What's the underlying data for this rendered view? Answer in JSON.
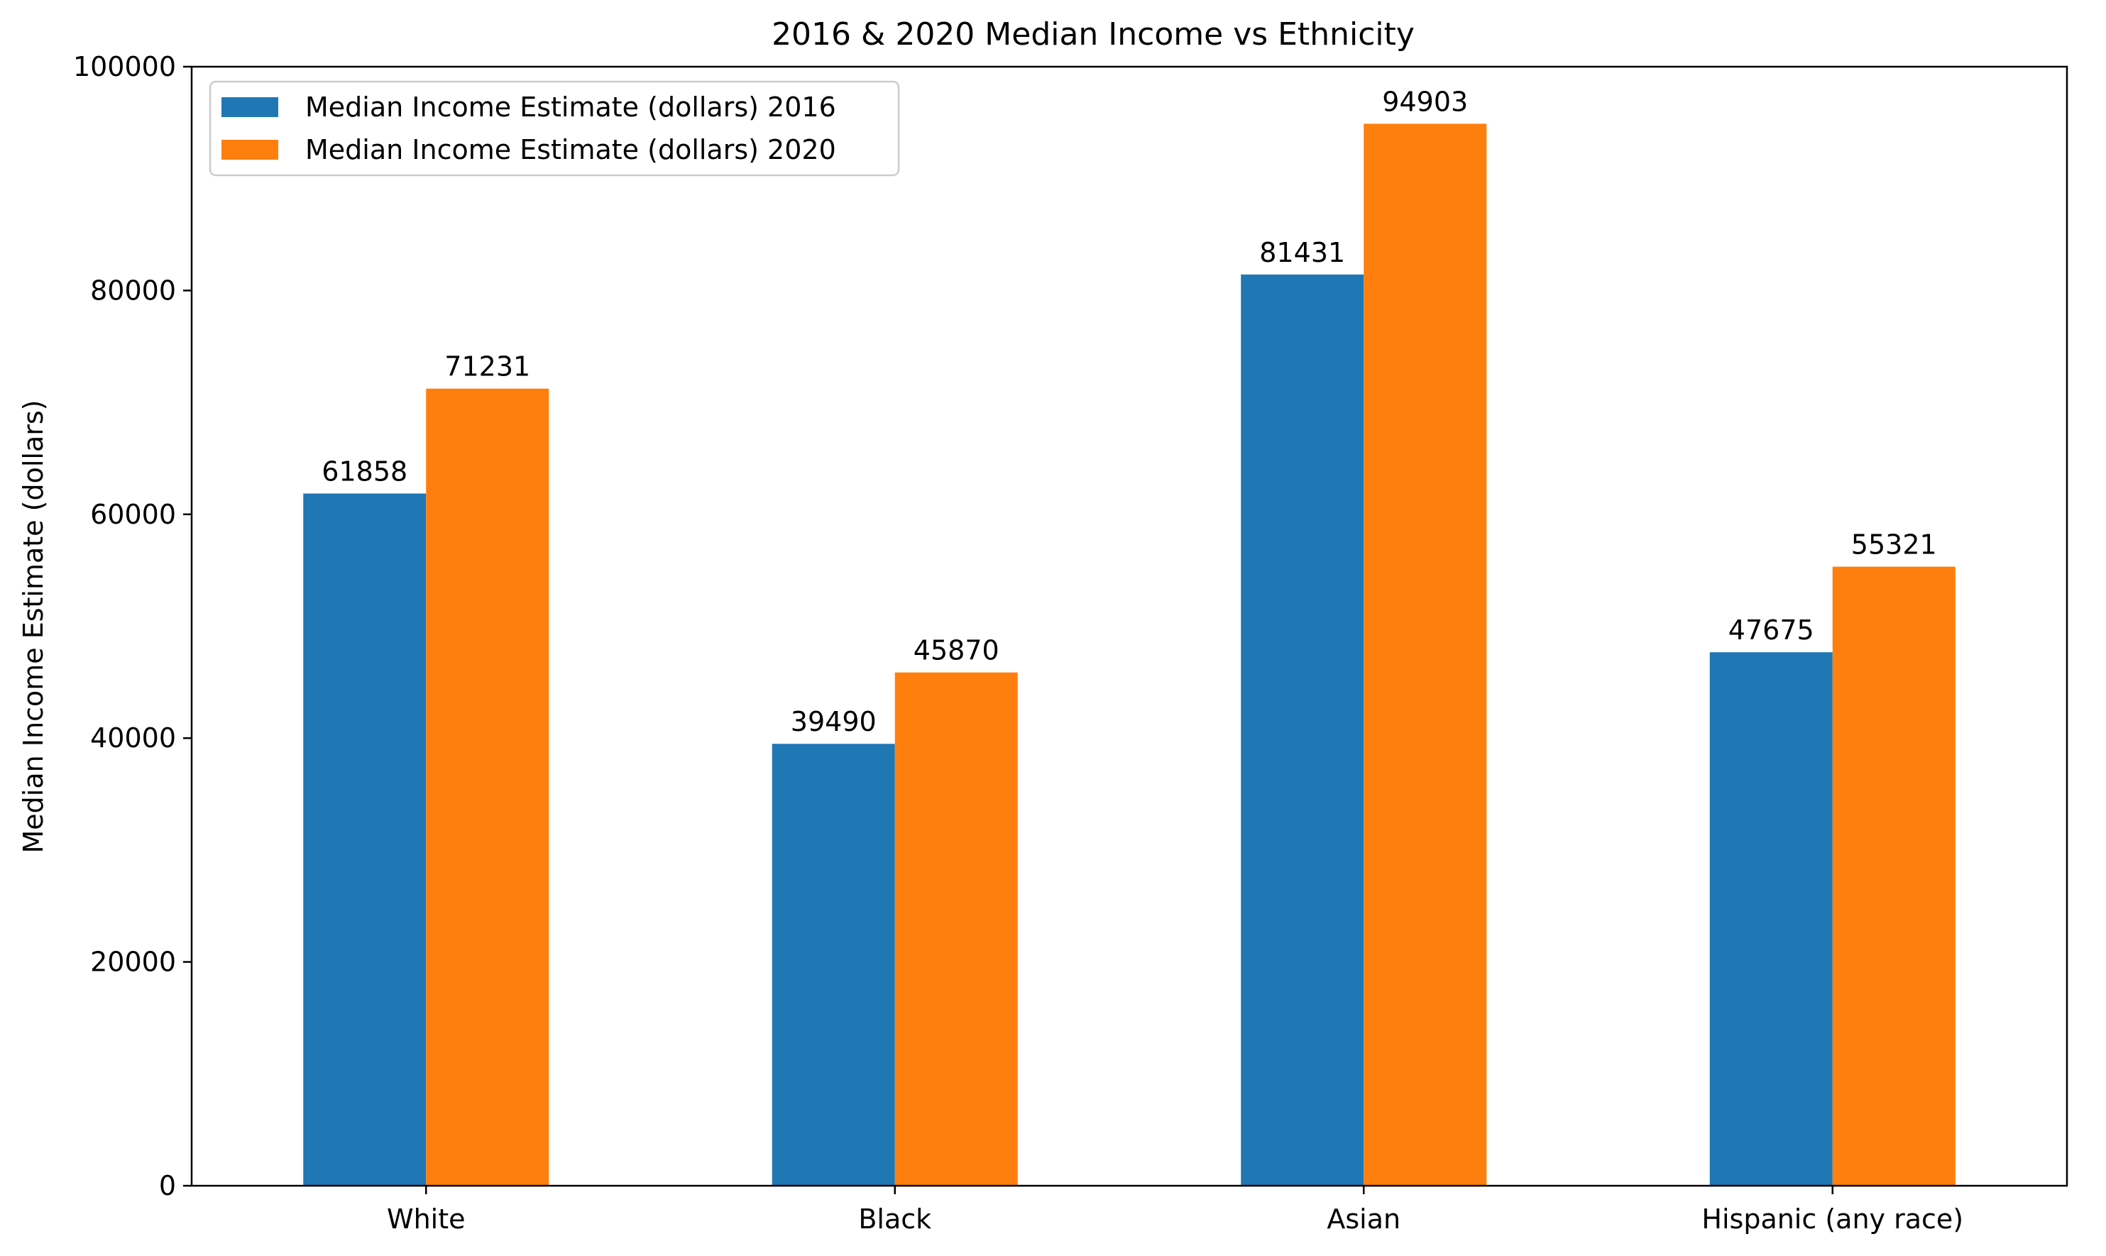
{
  "chart_data": {
    "type": "bar",
    "title": "2016 & 2020 Median Income vs Ethnicity",
    "xlabel": "",
    "ylabel": "Median Income Estimate (dollars)",
    "categories": [
      "White",
      "Black",
      "Asian",
      "Hispanic (any race)"
    ],
    "series": [
      {
        "name": "Median Income Estimate (dollars) 2016",
        "color": "#1f77b4",
        "values": [
          61858,
          39490,
          81431,
          47675
        ],
        "value_labels": [
          "61858",
          "39490",
          "81431",
          "47675"
        ]
      },
      {
        "name": "Median Income Estimate (dollars) 2020",
        "color": "#ff7f0e",
        "values": [
          71231,
          45870,
          94903,
          55321
        ],
        "value_labels": [
          "71231",
          "45870",
          "94903",
          "55321"
        ]
      }
    ],
    "ylim": [
      0,
      100000
    ],
    "yticks": [
      "0",
      "20000",
      "40000",
      "60000",
      "80000",
      "100000"
    ],
    "grid": false,
    "legend_position": "top-left"
  }
}
